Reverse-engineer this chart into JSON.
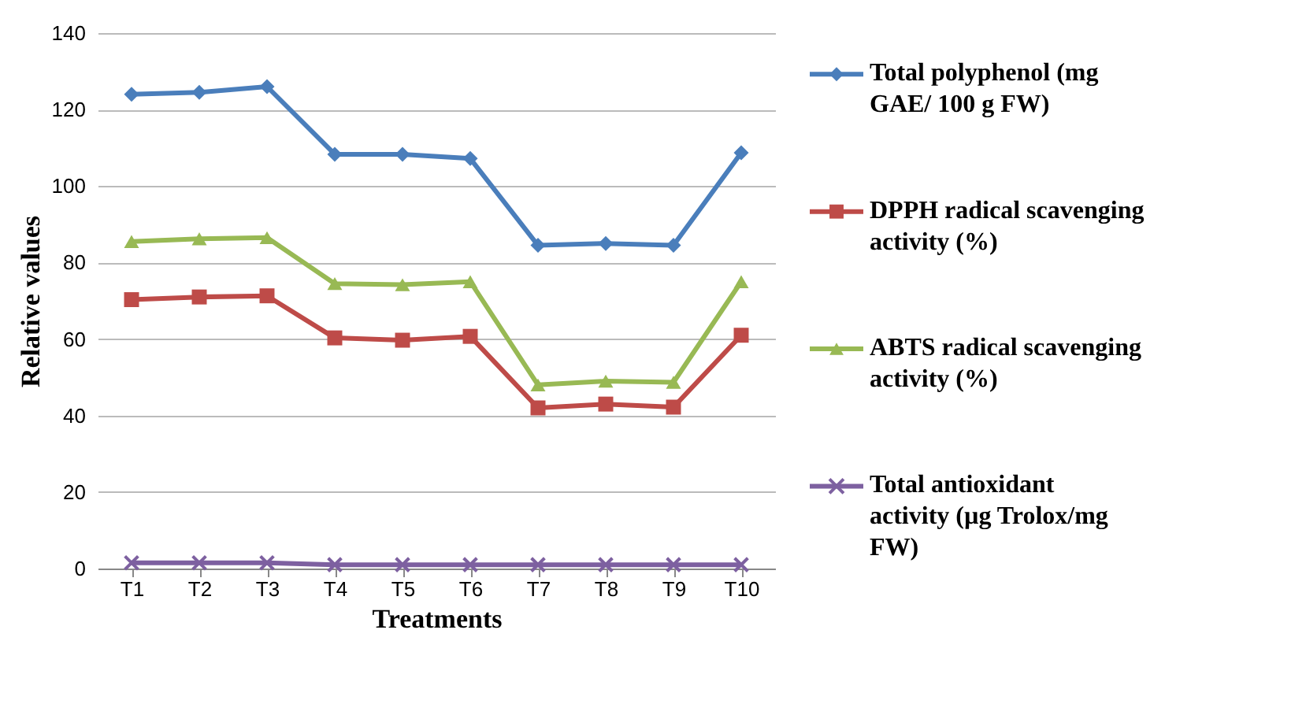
{
  "chart_data": {
    "type": "line",
    "xlabel": "Treatments",
    "ylabel": "Relative values",
    "categories": [
      "T1",
      "T2",
      "T3",
      "T4",
      "T5",
      "T6",
      "T7",
      "T8",
      "T9",
      "T10"
    ],
    "series": [
      {
        "name": "Total polyphenol (mg GAE/ 100 g FW)",
        "color": "#4a7ebb",
        "marker": "diamond",
        "values": [
          124,
          124.5,
          126,
          108.3,
          108.3,
          107.2,
          84.5,
          85,
          84.5,
          108.7
        ]
      },
      {
        "name": "DPPH radical scavenging activity (%)",
        "color": "#be4b48",
        "marker": "square",
        "values": [
          70.3,
          71,
          71.3,
          60.3,
          59.7,
          60.7,
          42,
          43,
          42.2,
          61
        ]
      },
      {
        "name": "ABTS radical scavenging activity (%)",
        "color": "#98b954",
        "marker": "triangle",
        "values": [
          85.5,
          86.2,
          86.5,
          74.5,
          74.2,
          75,
          48,
          49,
          48.7,
          75
        ]
      },
      {
        "name": "Total antioxidant activity (µg Trolox/mg FW)",
        "color": "#7d60a0",
        "marker": "cross",
        "values": [
          1.5,
          1.5,
          1.5,
          1,
          1,
          1,
          1,
          1,
          1,
          1
        ]
      }
    ],
    "ylim": [
      0,
      140
    ],
    "yticks": [
      0,
      20,
      40,
      60,
      80,
      100,
      120,
      140
    ],
    "grid": "y",
    "legend": "right",
    "line_style": "solid"
  }
}
